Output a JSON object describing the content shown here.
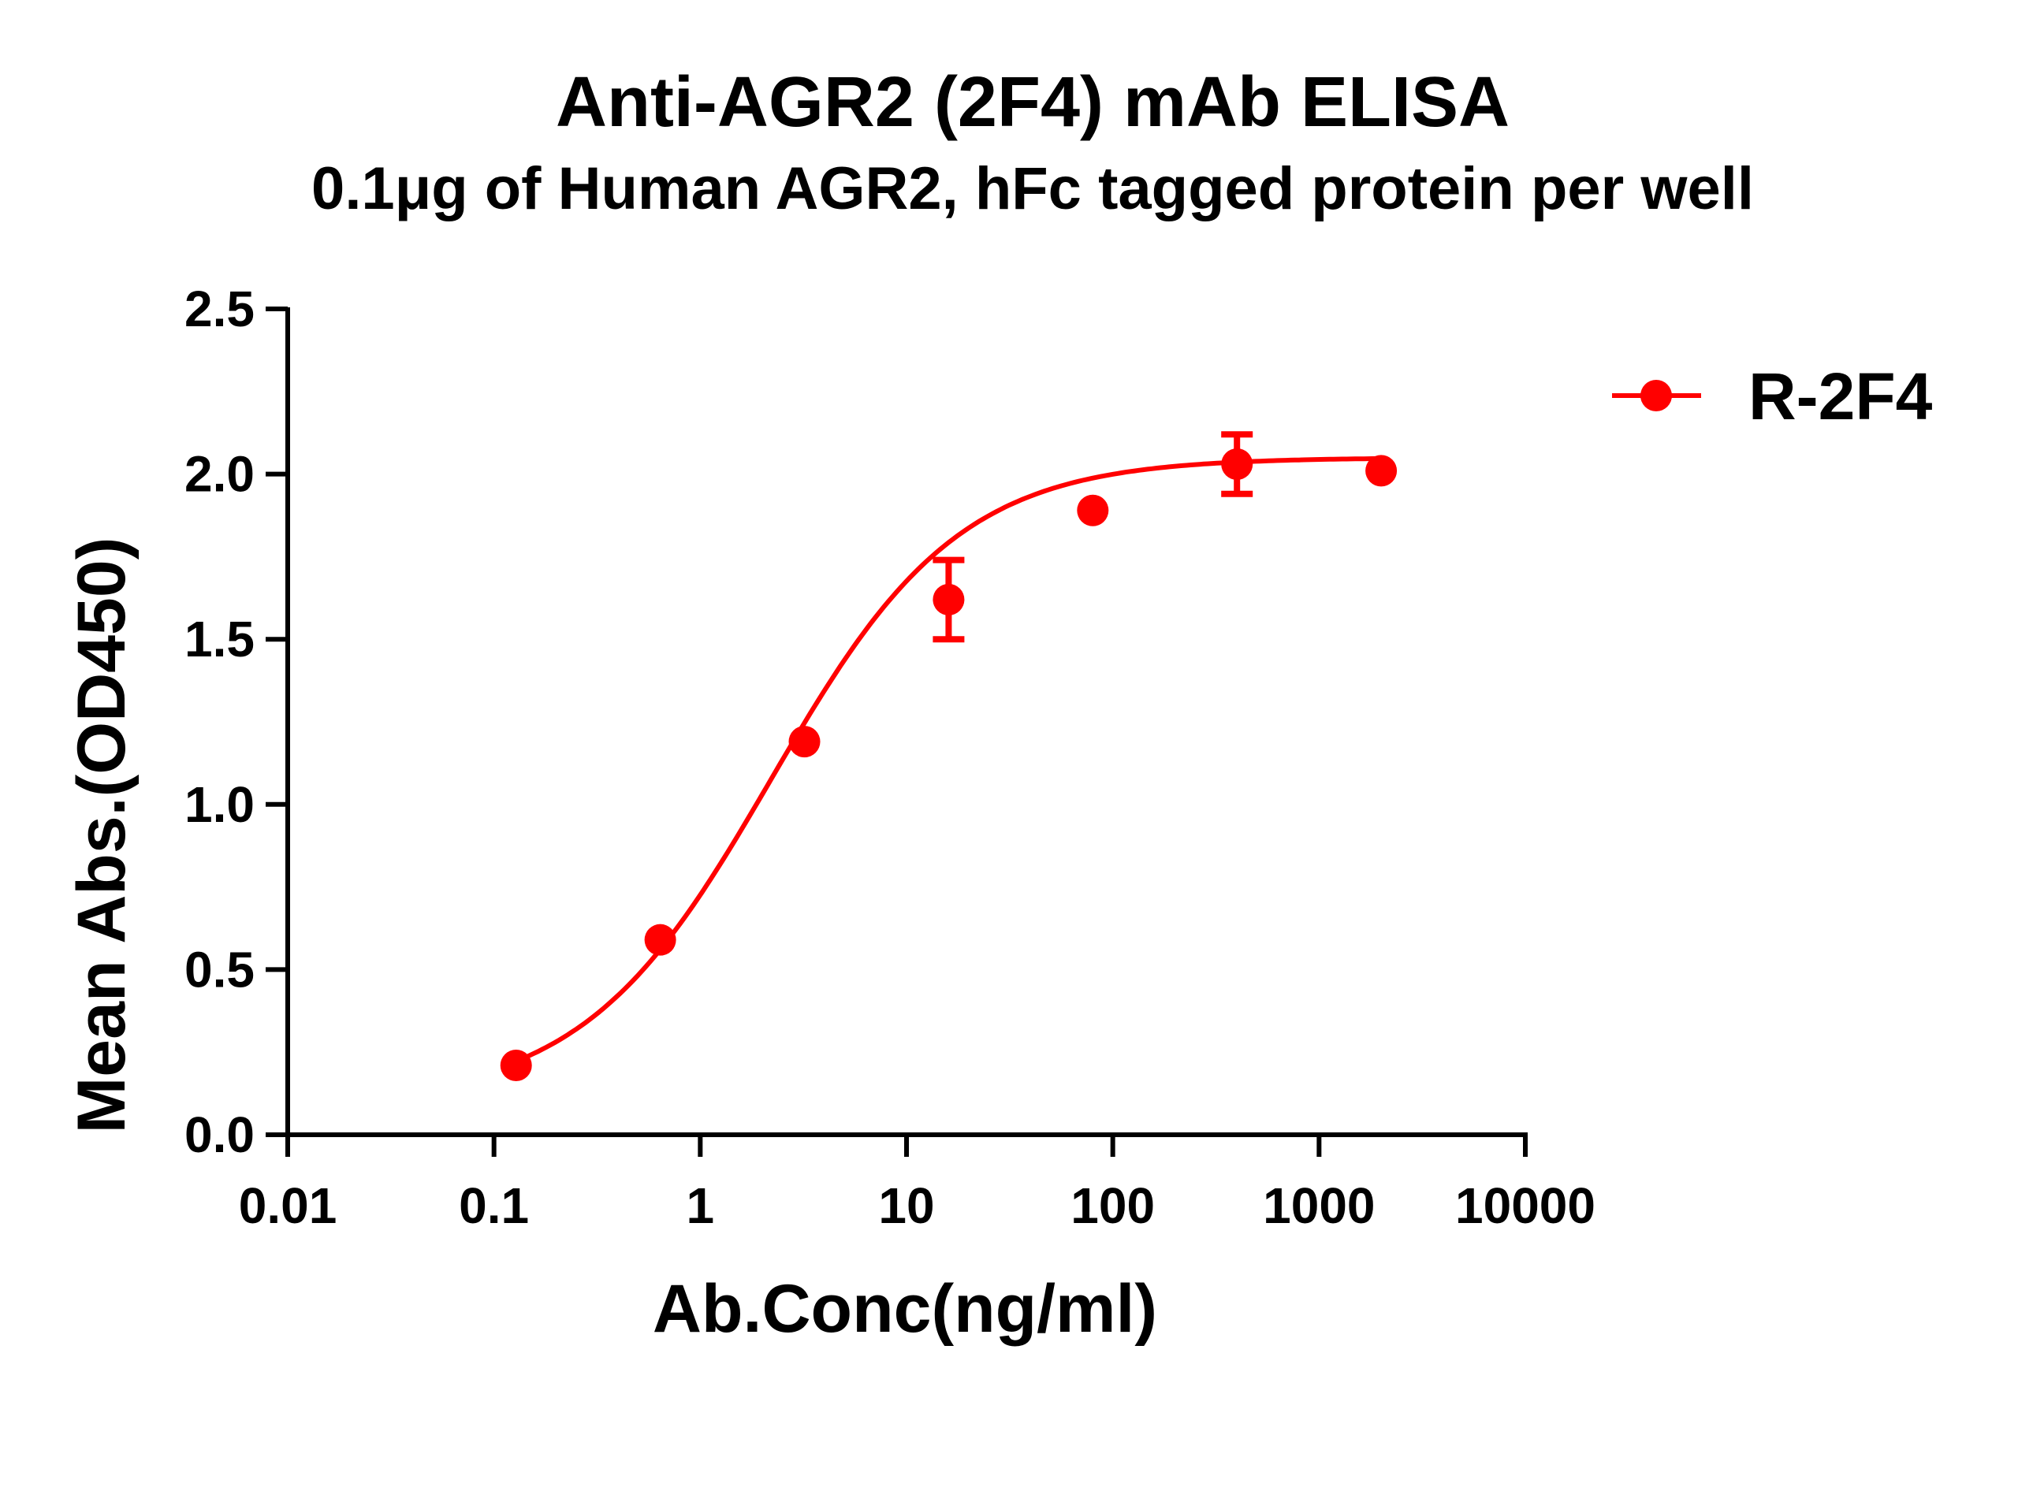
{
  "chart_data": {
    "type": "line",
    "title": "Anti-AGR2 (2F4) mAb ELISA",
    "subtitle": "0.1μg of Human AGR2, hFc tagged protein per well",
    "xlabel": "Ab.Conc(ng/ml)",
    "ylabel": "Mean Abs.(OD450)",
    "x_scale": "log",
    "xlim": [
      0.01,
      10000
    ],
    "ylim": [
      0,
      2.5
    ],
    "x_ticks": [
      0.01,
      0.1,
      1,
      10,
      100,
      1000,
      10000
    ],
    "x_tick_labels": [
      "0.01",
      "0.1",
      "1",
      "10",
      "100",
      "1000",
      "10000"
    ],
    "y_ticks": [
      0,
      0.5,
      1,
      1.5,
      2,
      2.5
    ],
    "y_tick_labels": [
      "0.0",
      "0.5",
      "1.0",
      "1.5",
      "2.0",
      "2.5"
    ],
    "grid": false,
    "legend_position": "top-right",
    "series": [
      {
        "name": "R-2F4",
        "color": "#ff0000",
        "x": [
          0.128,
          0.64,
          3.2,
          16,
          80,
          400,
          2000
        ],
        "y": [
          0.21,
          0.59,
          1.19,
          1.62,
          1.89,
          2.03,
          2.01
        ],
        "error": [
          0,
          0,
          0,
          0.12,
          0,
          0.09,
          0
        ],
        "fit": "4PL",
        "fit_params": {
          "bottom": 0.1,
          "top": 2.05,
          "ec50": 2.2,
          "hill": 0.95
        }
      }
    ]
  }
}
